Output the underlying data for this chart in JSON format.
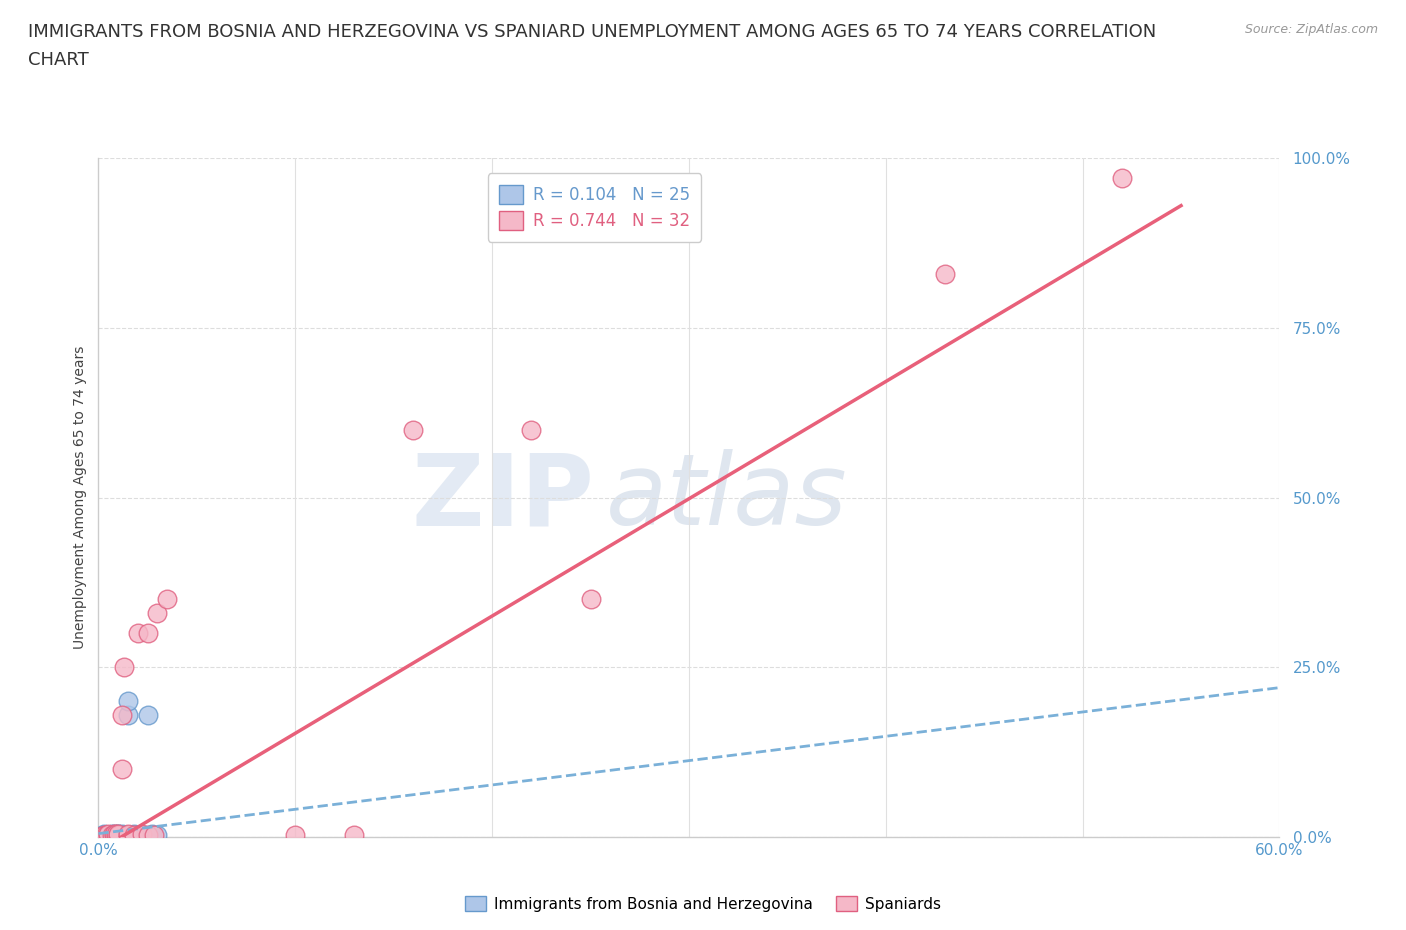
{
  "title_line1": "IMMIGRANTS FROM BOSNIA AND HERZEGOVINA VS SPANIARD UNEMPLOYMENT AMONG AGES 65 TO 74 YEARS CORRELATION",
  "title_line2": "CHART",
  "source": "Source: ZipAtlas.com",
  "ylabel": "Unemployment Among Ages 65 to 74 years",
  "xlim": [
    0,
    0.6
  ],
  "ylim": [
    0,
    1.0
  ],
  "yticks": [
    0.0,
    0.25,
    0.5,
    0.75,
    1.0
  ],
  "ytick_labels": [
    "0.0%",
    "25.0%",
    "50.0%",
    "75.0%",
    "100.0%"
  ],
  "blue_label": "Immigrants from Bosnia and Herzegovina",
  "pink_label": "Spaniards",
  "blue_R": "R = 0.104",
  "blue_N": "N = 25",
  "pink_R": "R = 0.744",
  "pink_N": "N = 32",
  "blue_color": "#aec6e8",
  "pink_color": "#f5b8c8",
  "blue_edge": "#6699cc",
  "pink_edge": "#e06080",
  "blue_line_color": "#7ab0d8",
  "pink_line_color": "#e8607a",
  "watermark_color": "#d0dff0",
  "blue_scatter_x": [
    0.003,
    0.003,
    0.003,
    0.005,
    0.005,
    0.007,
    0.007,
    0.008,
    0.008,
    0.008,
    0.01,
    0.01,
    0.01,
    0.012,
    0.012,
    0.015,
    0.015,
    0.018,
    0.018,
    0.02,
    0.022,
    0.025,
    0.027,
    0.027,
    0.03
  ],
  "blue_scatter_y": [
    0.002,
    0.003,
    0.005,
    0.002,
    0.003,
    0.003,
    0.004,
    0.002,
    0.003,
    0.005,
    0.003,
    0.004,
    0.005,
    0.003,
    0.005,
    0.18,
    0.2,
    0.003,
    0.005,
    0.003,
    0.003,
    0.18,
    0.003,
    0.005,
    0.003
  ],
  "pink_scatter_x": [
    0.002,
    0.003,
    0.004,
    0.005,
    0.005,
    0.007,
    0.008,
    0.008,
    0.009,
    0.009,
    0.01,
    0.01,
    0.012,
    0.012,
    0.013,
    0.015,
    0.015,
    0.018,
    0.02,
    0.022,
    0.025,
    0.025,
    0.028,
    0.03,
    0.035,
    0.1,
    0.13,
    0.16,
    0.22,
    0.25,
    0.43,
    0.52
  ],
  "pink_scatter_y": [
    0.002,
    0.003,
    0.003,
    0.003,
    0.004,
    0.003,
    0.003,
    0.004,
    0.003,
    0.004,
    0.003,
    0.005,
    0.1,
    0.18,
    0.25,
    0.003,
    0.004,
    0.003,
    0.3,
    0.005,
    0.003,
    0.3,
    0.003,
    0.33,
    0.35,
    0.003,
    0.003,
    0.6,
    0.6,
    0.35,
    0.83,
    0.97
  ],
  "blue_trend_x": [
    0.0,
    0.6
  ],
  "blue_trend_y": [
    0.005,
    0.22
  ],
  "pink_trend_x": [
    0.0,
    0.55
  ],
  "pink_trend_y": [
    -0.02,
    0.93
  ],
  "background_color": "#ffffff",
  "grid_color": "#dddddd",
  "title_fontsize": 13,
  "axis_fontsize": 11,
  "legend_fontsize": 12,
  "marker_size": 180,
  "xtick_positions": [
    0.0,
    0.1,
    0.2,
    0.3,
    0.4,
    0.5,
    0.6
  ]
}
